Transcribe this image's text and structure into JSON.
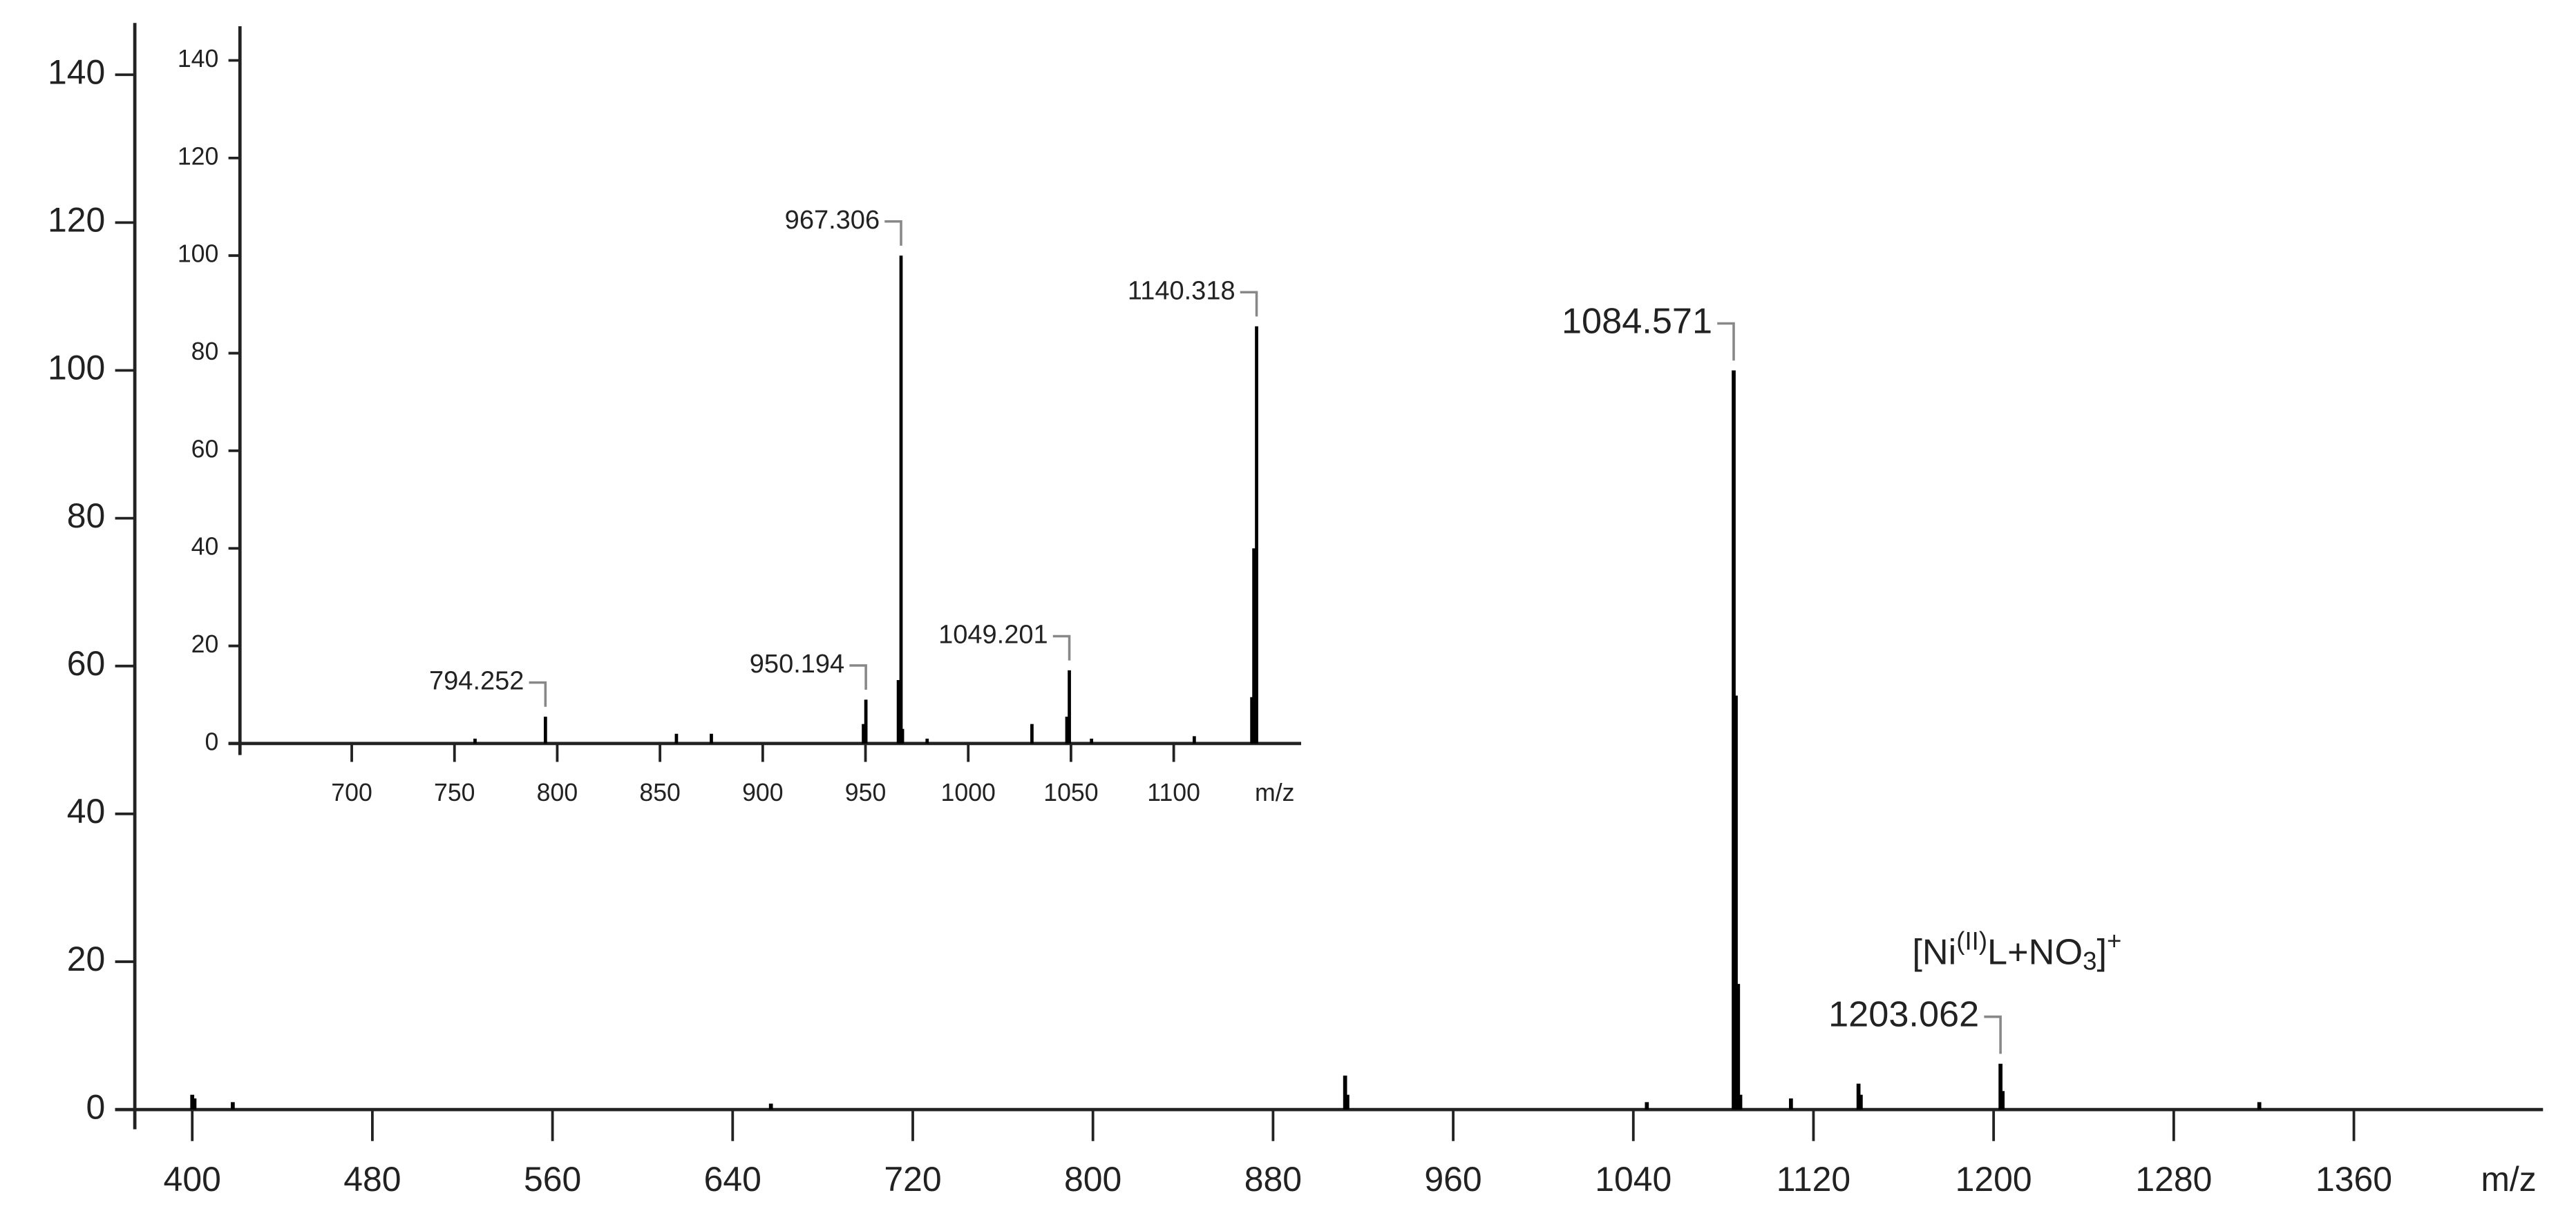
{
  "chart_data": [
    {
      "type": "spectrum",
      "x_label": "m/z",
      "color": "#000000",
      "xlim": [
        374.5,
        1444
      ],
      "ylim": [
        0,
        147
      ],
      "xticks": [
        400,
        480,
        560,
        640,
        720,
        800,
        880,
        960,
        1040,
        1120,
        1200,
        1280,
        1360
      ],
      "yticks": [
        0,
        20,
        40,
        60,
        80,
        100,
        120,
        140
      ],
      "x": [
        400,
        401,
        418,
        657,
        912,
        913,
        1046,
        1084.571,
        1085.5,
        1086.5,
        1087.5,
        1110,
        1140,
        1141,
        1203.062,
        1204,
        1318
      ],
      "values": [
        2,
        1.5,
        1,
        0.8,
        4.6,
        2,
        1,
        100,
        56,
        17,
        2,
        1.5,
        3.5,
        2,
        6.2,
        2.5,
        1
      ],
      "labeled_peaks": [
        1084.571,
        1203.062
      ],
      "annotation_parts": [
        "[Ni",
        "(II)",
        "L+NO",
        "3",
        "]",
        "+"
      ]
    },
    {
      "type": "spectrum",
      "x_label": "m/z",
      "color": "#000000",
      "xlim": [
        645.6,
        1162
      ],
      "ylim": [
        0,
        147
      ],
      "xticks": [
        700,
        750,
        800,
        850,
        900,
        950,
        1000,
        1050,
        1100
      ],
      "yticks": [
        0,
        20,
        40,
        60,
        80,
        100,
        120,
        140
      ],
      "x": [
        760,
        794.252,
        858,
        875,
        949,
        950.194,
        966,
        967.306,
        968,
        980,
        1031,
        1048,
        1049.201,
        1060,
        1110,
        1138,
        1139,
        1140.318
      ],
      "values": [
        1,
        5.5,
        2,
        2,
        4,
        9,
        13,
        100,
        3,
        1,
        4,
        5.5,
        15,
        1,
        1.5,
        9.5,
        40,
        85.5
      ],
      "labeled_peaks": [
        794.252,
        950.194,
        967.306,
        1049.201,
        1140.318
      ]
    }
  ]
}
